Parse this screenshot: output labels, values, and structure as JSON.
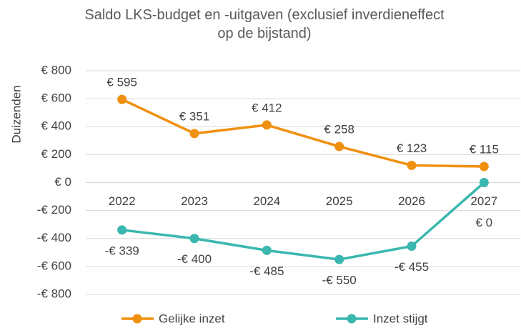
{
  "chart_data": {
    "type": "line",
    "title": "Saldo LKS-budget en -uitgaven (exclusief inverdieneffect op de bijstand)",
    "y_label": "Duizenden",
    "categories": [
      "2022",
      "2023",
      "2024",
      "2025",
      "2026",
      "2027"
    ],
    "series": [
      {
        "name": "Gelijke inzet",
        "color": "#f0900f",
        "values": [
          595,
          351,
          412,
          258,
          123,
          115
        ],
        "value_labels": [
          "€ 595",
          "€ 351",
          "€ 412",
          "€ 258",
          "€ 123",
          "€ 115"
        ]
      },
      {
        "name": "Inzet stijgt",
        "color": "#3ab7ae",
        "values": [
          -339,
          -400,
          -485,
          -550,
          -455,
          0
        ],
        "value_labels": [
          "-€ 339",
          "-€ 400",
          "-€ 485",
          "-€ 550",
          "-€ 455",
          "€ 0"
        ]
      }
    ],
    "ylim": [
      -800,
      800
    ],
    "yticks": [
      {
        "value": -800,
        "label": "-€ 800"
      },
      {
        "value": -600,
        "label": "-€ 600"
      },
      {
        "value": -400,
        "label": "-€ 400"
      },
      {
        "value": -200,
        "label": "-€ 200"
      },
      {
        "value": 0,
        "label": "€ 0"
      },
      {
        "value": 200,
        "label": "€ 200"
      },
      {
        "value": 400,
        "label": "€ 400"
      },
      {
        "value": 600,
        "label": "€ 600"
      },
      {
        "value": 800,
        "label": "€ 800"
      }
    ],
    "grid": true,
    "legend": "bottom"
  }
}
